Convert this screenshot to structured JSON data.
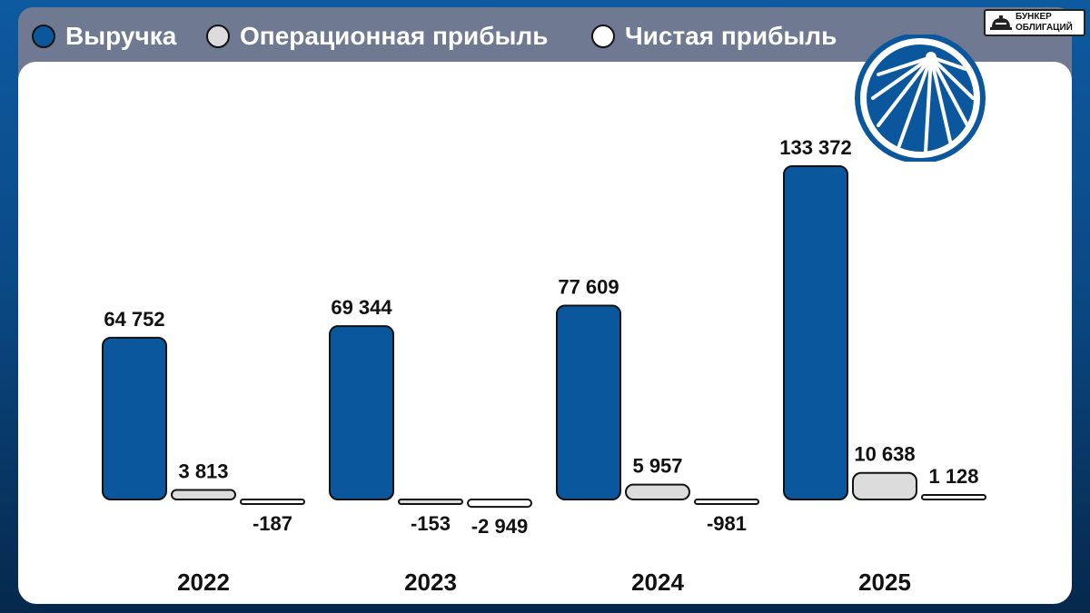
{
  "brand": {
    "line1": "БУНКЕР",
    "line2": "ОБЛИГАЦИЙ"
  },
  "colors": {
    "revenue": "#0b579d",
    "operating_profit": "#dcdcdc",
    "net_profit": "#ffffff"
  },
  "chart_data": {
    "type": "bar",
    "categories": [
      "2022",
      "2023",
      "2024",
      "2025"
    ],
    "series": [
      {
        "name": "Выручка",
        "values": [
          64752,
          69344,
          77609,
          133372
        ],
        "labels": [
          "64 752",
          "69 344",
          "77 609",
          "133 372"
        ]
      },
      {
        "name": "Операционная прибыль",
        "values": [
          3813,
          -153,
          5957,
          10638
        ],
        "labels": [
          "3 813",
          "-153",
          "5 957",
          "10 638"
        ]
      },
      {
        "name": "Чистая прибыль",
        "values": [
          -187,
          -2949,
          -981,
          1128
        ],
        "labels": [
          "-187",
          "-2 949",
          "-981",
          "1 128"
        ]
      }
    ],
    "legend": "top-left",
    "grid": false
  }
}
